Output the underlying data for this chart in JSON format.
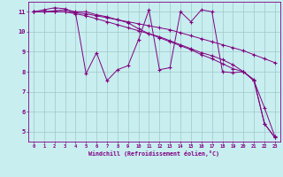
{
  "xlabel": "Windchill (Refroidissement éolien,°C)",
  "bg_color": "#c8eef0",
  "line_color": "#800080",
  "grid_color": "#a0c8c8",
  "x": [
    0,
    1,
    2,
    3,
    4,
    5,
    6,
    7,
    8,
    9,
    10,
    11,
    12,
    13,
    14,
    15,
    16,
    17,
    18,
    19,
    20,
    21,
    22,
    23
  ],
  "line1": [
    11.0,
    11.1,
    11.2,
    11.15,
    10.95,
    7.9,
    8.95,
    7.55,
    8.1,
    8.3,
    9.6,
    11.1,
    8.1,
    8.2,
    11.0,
    10.5,
    11.1,
    11.0,
    8.0,
    7.95,
    8.0,
    7.6,
    5.4,
    4.7
  ],
  "line2": [
    11.0,
    11.0,
    11.05,
    11.1,
    11.0,
    11.0,
    10.85,
    10.75,
    10.6,
    10.45,
    10.15,
    9.9,
    9.7,
    9.5,
    9.3,
    9.1,
    8.85,
    8.65,
    8.4,
    8.15,
    8.0,
    7.55,
    5.4,
    4.7
  ],
  "line3": [
    11.0,
    11.0,
    11.0,
    11.0,
    10.9,
    10.8,
    10.65,
    10.5,
    10.35,
    10.2,
    10.05,
    9.9,
    9.75,
    9.55,
    9.35,
    9.15,
    8.95,
    8.8,
    8.6,
    8.35,
    8.0,
    7.55,
    6.2,
    4.75
  ],
  "line4": [
    11.0,
    11.0,
    11.0,
    11.0,
    10.95,
    10.9,
    10.8,
    10.7,
    10.6,
    10.5,
    10.4,
    10.3,
    10.2,
    10.1,
    9.95,
    9.8,
    9.65,
    9.5,
    9.35,
    9.2,
    9.05,
    8.85,
    8.65,
    8.45
  ]
}
